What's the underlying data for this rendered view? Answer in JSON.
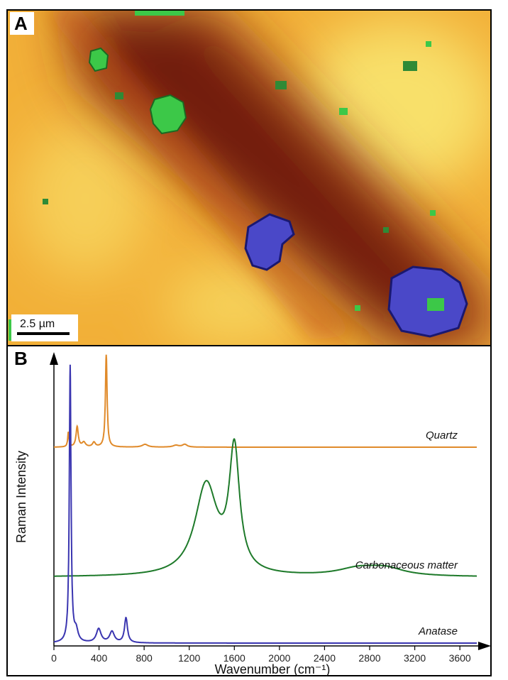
{
  "panel_a": {
    "label": "A",
    "scale_bar": "2.5 µm",
    "colors": {
      "matrix": "#f2b038",
      "matrix_light": "#f8e06a",
      "band": "#8a2a14",
      "band_dark": "#5a1208",
      "quartz_like_green": "#3cc848",
      "anatase_blue": "#4a48c8"
    }
  },
  "chart_data": {
    "type": "line",
    "panel_label": "B",
    "title": "",
    "xlabel": "Wavenumber (cm⁻¹)",
    "ylabel": "Raman Intensity",
    "xlim": [
      0,
      3750
    ],
    "x_ticks": [
      0,
      400,
      800,
      1200,
      1600,
      2000,
      2400,
      2800,
      3200,
      3600
    ],
    "x_tick_labels": [
      "0",
      "400",
      "800",
      "1200",
      "1600",
      "2000",
      "2400",
      "2800",
      "3200",
      "3600"
    ],
    "grid": false,
    "series": [
      {
        "name": "Quartz",
        "color": "#e08a2a",
        "baseline_fraction": 0.3,
        "peaks": [
          {
            "x": 128,
            "height": 0.16
          },
          {
            "x": 206,
            "height": 0.22
          },
          {
            "x": 265,
            "height": 0.05
          },
          {
            "x": 355,
            "height": 0.05
          },
          {
            "x": 464,
            "height": 1.0
          },
          {
            "x": 808,
            "height": 0.03
          },
          {
            "x": 1082,
            "height": 0.02
          },
          {
            "x": 1160,
            "height": 0.03
          }
        ]
      },
      {
        "name": "Carbonaceous matter",
        "color": "#1e7a2a",
        "baseline_fraction": 0.6,
        "peaks": [
          {
            "x": 1350,
            "height": 0.75
          },
          {
            "x": 1600,
            "height": 1.0
          },
          {
            "x": 2700,
            "height": 0.06
          },
          {
            "x": 2940,
            "height": 0.06
          }
        ]
      },
      {
        "name": "Anatase",
        "color": "#3a35b0",
        "baseline_fraction": 0.98,
        "peaks": [
          {
            "x": 144,
            "height": 1.0
          },
          {
            "x": 197,
            "height": 0.04
          },
          {
            "x": 397,
            "height": 0.05
          },
          {
            "x": 515,
            "height": 0.04
          },
          {
            "x": 639,
            "height": 0.09
          }
        ]
      }
    ]
  }
}
